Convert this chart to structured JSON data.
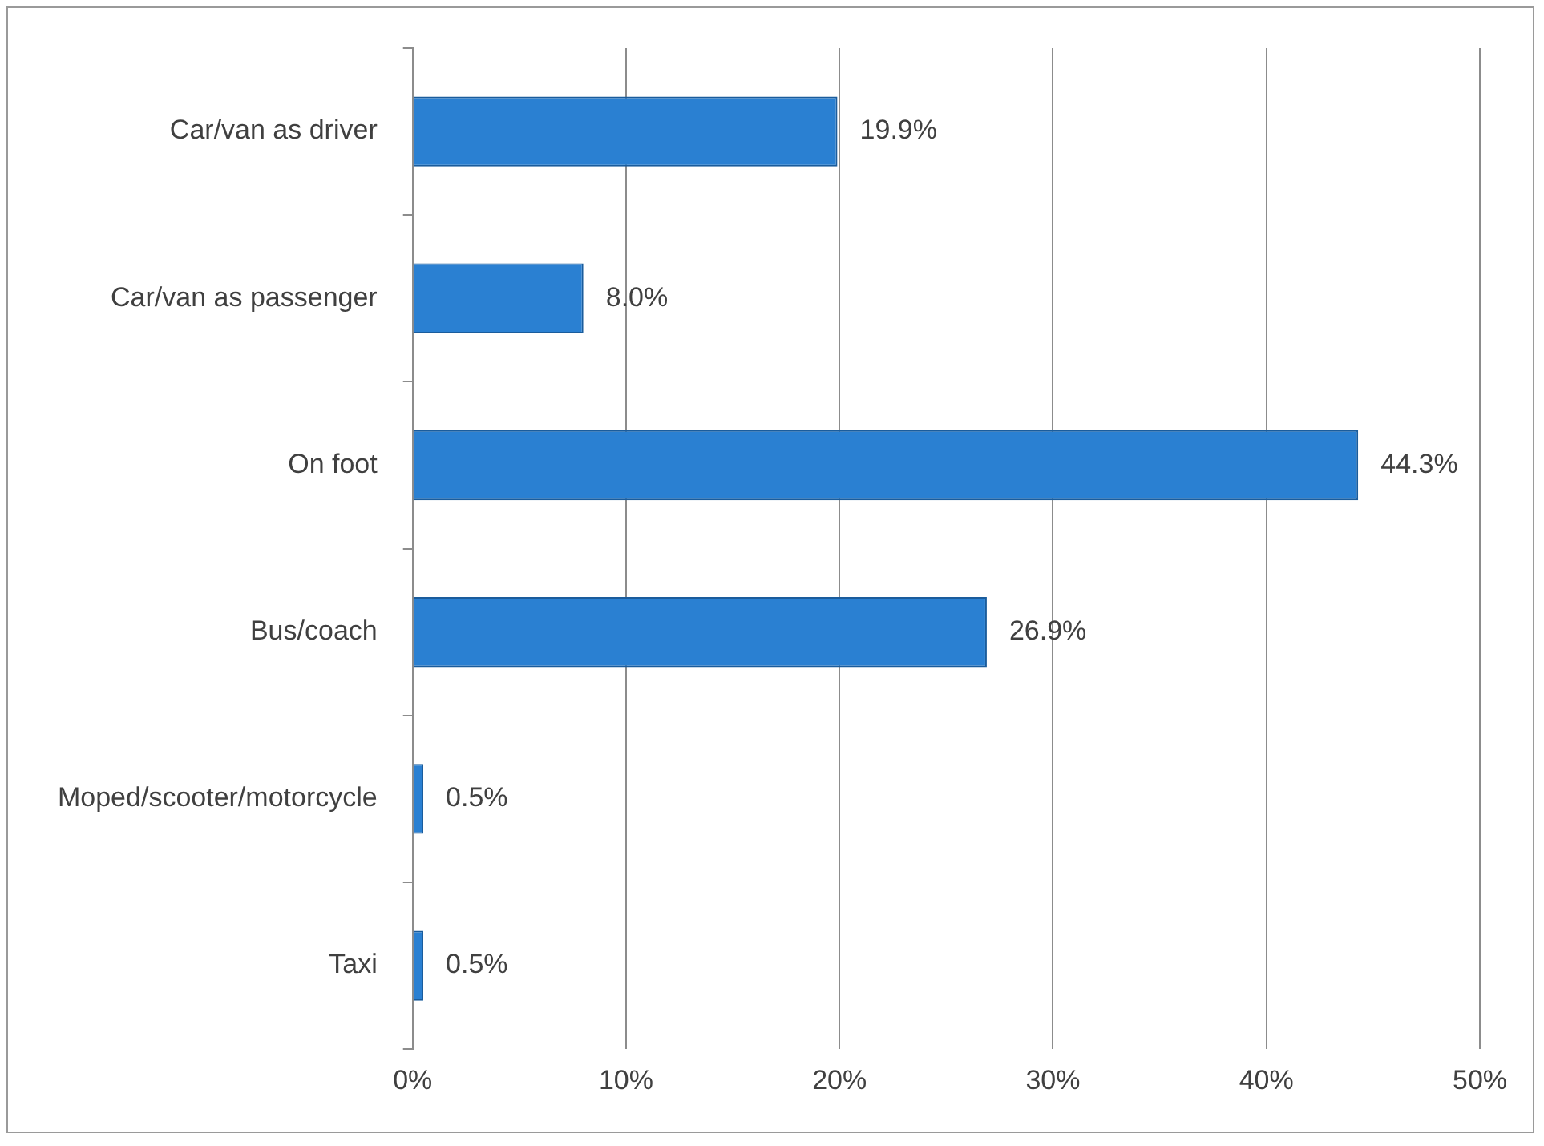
{
  "chart_data": {
    "type": "bar",
    "orientation": "horizontal",
    "categories": [
      "Car/van as driver",
      "Car/van as passenger",
      "On foot",
      "Bus/coach",
      "Moped/scooter/motorcycle",
      "Taxi"
    ],
    "values": [
      19.9,
      8.0,
      44.3,
      26.9,
      0.5,
      0.5
    ],
    "value_labels": [
      "19.9%",
      "8.0%",
      "44.3%",
      "26.9%",
      "0.5%",
      "0.5%"
    ],
    "color": "#2a80d2",
    "xlim": [
      0,
      50
    ],
    "xticks": [
      {
        "value": 0,
        "label": "0%"
      },
      {
        "value": 10,
        "label": "10%"
      },
      {
        "value": 20,
        "label": "20%"
      },
      {
        "value": 30,
        "label": "30%"
      },
      {
        "value": 40,
        "label": "40%"
      },
      {
        "value": 50,
        "label": "50%"
      }
    ],
    "grid": "x",
    "legend": false
  }
}
